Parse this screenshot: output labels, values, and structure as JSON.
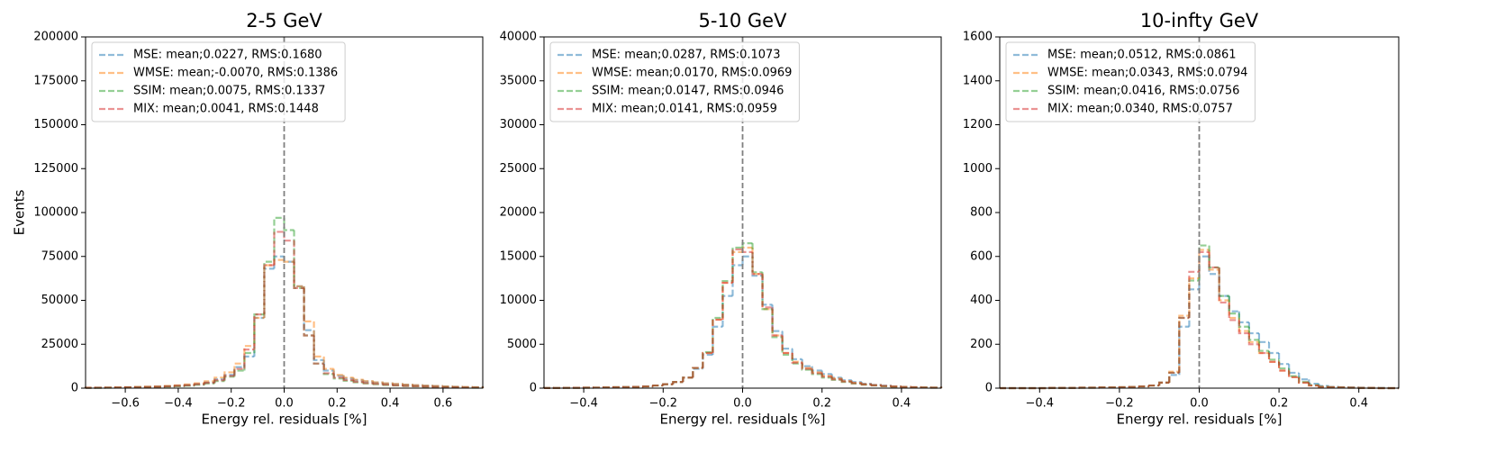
{
  "chart_data": [
    {
      "type": "histogram",
      "title": "2-5 GeV",
      "xlabel": "Energy rel. residuals [%]",
      "ylabel": "Events",
      "legend": "upper left",
      "vline": 0,
      "xlim": [
        -0.75,
        0.75
      ],
      "ylim": [
        0,
        200000
      ],
      "xticks": [
        {
          "value": -0.6,
          "label": "−0.6"
        },
        {
          "value": -0.4,
          "label": "−0.4"
        },
        {
          "value": -0.2,
          "label": "−0.2"
        },
        {
          "value": 0,
          "label": "0.0"
        },
        0.2,
        0.4,
        0.6
      ],
      "yticks": [
        0,
        25000,
        50000,
        75000,
        100000,
        125000,
        150000,
        175000,
        200000
      ],
      "bins": [
        -0.75,
        -0.7125,
        -0.675,
        -0.6375,
        -0.6,
        -0.5625,
        -0.525,
        -0.4875,
        -0.45,
        -0.4125,
        -0.375,
        -0.3375,
        -0.3,
        -0.2625,
        -0.225,
        -0.1875,
        -0.15,
        -0.1125,
        -0.075,
        -0.0375,
        0,
        0.0375,
        0.075,
        0.1125,
        0.15,
        0.1875,
        0.225,
        0.2625,
        0.3,
        0.3375,
        0.375,
        0.4125,
        0.45,
        0.4875,
        0.525,
        0.5625,
        0.6,
        0.6375,
        0.675,
        0.7125,
        0.75
      ],
      "series": [
        {
          "name": "MSE: mean;0.0227, RMS:0.1680",
          "color": "#1f77b4",
          "values": [
            200,
            250,
            300,
            400,
            500,
            600,
            700,
            900,
            1100,
            1400,
            1800,
            2400,
            3300,
            5000,
            7500,
            12000,
            18000,
            40000,
            68000,
            75000,
            72000,
            58000,
            33000,
            16000,
            10000,
            7000,
            5500,
            4500,
            3800,
            3200,
            2700,
            2300,
            2000,
            1700,
            1400,
            1200,
            1000,
            800,
            600,
            500
          ]
        },
        {
          "name": "WMSE: mean;-0.0070, RMS:0.1386",
          "color": "#ff7f0e",
          "values": [
            250,
            300,
            350,
            450,
            550,
            700,
            850,
            1000,
            1300,
            1600,
            2100,
            2800,
            3900,
            6000,
            9000,
            14000,
            24000,
            40000,
            70000,
            73000,
            72000,
            58000,
            38000,
            18000,
            11000,
            7500,
            6000,
            4800,
            4000,
            3300,
            2800,
            2400,
            2000,
            1700,
            1400,
            1200,
            1000,
            800,
            650,
            500
          ]
        },
        {
          "name": "SSIM: mean;0.0075, RMS:0.1337",
          "color": "#2ca02c",
          "values": [
            150,
            200,
            250,
            300,
            400,
            500,
            600,
            700,
            900,
            1100,
            1400,
            1900,
            2700,
            4000,
            6500,
            10000,
            20000,
            42000,
            72000,
            97000,
            90000,
            57000,
            30000,
            14000,
            8000,
            5500,
            4200,
            3300,
            2700,
            2200,
            1800,
            1500,
            1200,
            1000,
            800,
            650,
            500,
            400,
            300,
            250
          ]
        },
        {
          "name": "MIX: mean;0.0041, RMS:0.1448",
          "color": "#d62728",
          "values": [
            180,
            220,
            280,
            350,
            450,
            550,
            650,
            800,
            1000,
            1300,
            1600,
            2200,
            3000,
            4500,
            7000,
            11000,
            22000,
            42000,
            70000,
            89000,
            84000,
            57000,
            30000,
            14000,
            8500,
            6000,
            4600,
            3600,
            2900,
            2400,
            2000,
            1600,
            1300,
            1100,
            900,
            700,
            550,
            450,
            350,
            280
          ]
        }
      ]
    },
    {
      "type": "histogram",
      "title": "5-10 GeV",
      "xlabel": "Energy rel. residuals [%]",
      "legend": "upper left",
      "vline": 0,
      "xlim": [
        -0.5,
        0.5
      ],
      "ylim": [
        0,
        40000
      ],
      "xticks": [
        {
          "value": -0.4,
          "label": "−0.4"
        },
        {
          "value": -0.2,
          "label": "−0.2"
        },
        {
          "value": 0,
          "label": "0.0"
        },
        0.2,
        0.4
      ],
      "yticks": [
        0,
        5000,
        10000,
        15000,
        20000,
        25000,
        30000,
        35000,
        40000
      ],
      "bins": [
        -0.5,
        -0.475,
        -0.45,
        -0.425,
        -0.4,
        -0.375,
        -0.35,
        -0.325,
        -0.3,
        -0.275,
        -0.25,
        -0.225,
        -0.2,
        -0.175,
        -0.15,
        -0.125,
        -0.1,
        -0.075,
        -0.05,
        -0.025,
        0,
        0.025,
        0.05,
        0.075,
        0.1,
        0.125,
        0.15,
        0.175,
        0.2,
        0.225,
        0.25,
        0.275,
        0.3,
        0.325,
        0.35,
        0.375,
        0.4,
        0.425,
        0.45,
        0.475,
        0.5
      ],
      "series": [
        {
          "name": "MSE: mean;0.0287, RMS:0.1073",
          "color": "#1f77b4",
          "values": [
            10,
            20,
            30,
            40,
            50,
            60,
            80,
            100,
            120,
            150,
            200,
            300,
            450,
            700,
            1200,
            2200,
            3800,
            7000,
            10500,
            14000,
            15000,
            12800,
            9500,
            6500,
            4500,
            3300,
            2500,
            2000,
            1600,
            1200,
            900,
            700,
            500,
            380,
            280,
            200,
            150,
            110,
            80,
            60
          ]
        },
        {
          "name": "WMSE: mean;0.0170, RMS:0.0969",
          "color": "#ff7f0e",
          "values": [
            10,
            20,
            30,
            40,
            50,
            60,
            80,
            100,
            120,
            150,
            200,
            300,
            450,
            700,
            1200,
            2300,
            4000,
            7800,
            12000,
            15500,
            16000,
            13000,
            9000,
            6000,
            4000,
            3000,
            2300,
            1800,
            1400,
            1100,
            800,
            600,
            450,
            350,
            250,
            200,
            150,
            100,
            80,
            60
          ]
        },
        {
          "name": "SSIM: mean;0.0147, RMS:0.0946",
          "color": "#2ca02c",
          "values": [
            10,
            20,
            30,
            40,
            50,
            60,
            80,
            100,
            120,
            150,
            200,
            300,
            450,
            700,
            1200,
            2300,
            4100,
            8000,
            12200,
            16000,
            16500,
            13200,
            9000,
            5800,
            3800,
            2800,
            2100,
            1600,
            1200,
            950,
            700,
            520,
            400,
            300,
            220,
            160,
            120,
            90,
            70,
            50
          ]
        },
        {
          "name": "MIX: mean;0.0141, RMS:0.0959",
          "color": "#d62728",
          "values": [
            10,
            20,
            30,
            40,
            50,
            60,
            80,
            100,
            120,
            150,
            200,
            300,
            450,
            700,
            1200,
            2300,
            4000,
            7800,
            12000,
            15800,
            15500,
            13000,
            9200,
            6000,
            4000,
            2900,
            2200,
            1700,
            1300,
            1000,
            750,
            560,
            420,
            320,
            240,
            180,
            130,
            100,
            70,
            50
          ]
        }
      ]
    },
    {
      "type": "histogram",
      "title": "10-infty GeV",
      "xlabel": "Energy rel. residuals [%]",
      "legend": "upper left",
      "vline": 0,
      "xlim": [
        -0.5,
        0.5
      ],
      "ylim": [
        0,
        1600
      ],
      "xticks": [
        {
          "value": -0.4,
          "label": "−0.4"
        },
        {
          "value": -0.2,
          "label": "−0.2"
        },
        {
          "value": 0,
          "label": "0.0"
        },
        0.2,
        0.4
      ],
      "yticks": [
        0,
        200,
        400,
        600,
        800,
        1000,
        1200,
        1400,
        1600
      ],
      "bins": [
        -0.5,
        -0.475,
        -0.45,
        -0.425,
        -0.4,
        -0.375,
        -0.35,
        -0.325,
        -0.3,
        -0.275,
        -0.25,
        -0.225,
        -0.2,
        -0.175,
        -0.15,
        -0.125,
        -0.1,
        -0.075,
        -0.05,
        -0.025,
        0,
        0.025,
        0.05,
        0.075,
        0.1,
        0.125,
        0.15,
        0.175,
        0.2,
        0.225,
        0.25,
        0.275,
        0.3,
        0.325,
        0.35,
        0.375,
        0.4,
        0.425,
        0.45,
        0.475,
        0.5
      ],
      "series": [
        {
          "name": "MSE: mean;0.0512, RMS:0.0861",
          "color": "#1f77b4",
          "values": [
            0,
            0,
            0,
            0,
            0,
            1,
            1,
            1,
            2,
            2,
            3,
            3,
            4,
            5,
            8,
            12,
            25,
            60,
            280,
            450,
            600,
            520,
            420,
            350,
            300,
            250,
            210,
            160,
            110,
            70,
            40,
            20,
            10,
            6,
            4,
            3,
            2,
            1,
            1,
            0
          ]
        },
        {
          "name": "WMSE: mean;0.0343, RMS:0.0794",
          "color": "#ff7f0e",
          "values": [
            0,
            0,
            0,
            0,
            0,
            1,
            1,
            1,
            2,
            2,
            3,
            3,
            4,
            5,
            8,
            12,
            25,
            75,
            330,
            500,
            630,
            540,
            400,
            320,
            260,
            210,
            160,
            120,
            80,
            50,
            25,
            12,
            6,
            4,
            3,
            2,
            1,
            1,
            0,
            0
          ]
        },
        {
          "name": "SSIM: mean;0.0416, RMS:0.0756",
          "color": "#2ca02c",
          "values": [
            0,
            0,
            0,
            0,
            0,
            1,
            1,
            1,
            2,
            2,
            3,
            3,
            4,
            5,
            8,
            12,
            25,
            70,
            320,
            490,
            650,
            550,
            420,
            340,
            280,
            220,
            170,
            130,
            90,
            55,
            28,
            14,
            7,
            4,
            3,
            2,
            1,
            1,
            0,
            0
          ]
        },
        {
          "name": "MIX: mean;0.0340, RMS:0.0757",
          "color": "#d62728",
          "values": [
            0,
            0,
            0,
            0,
            0,
            1,
            1,
            1,
            2,
            2,
            3,
            3,
            4,
            5,
            8,
            12,
            25,
            70,
            320,
            530,
            620,
            550,
            390,
            310,
            250,
            200,
            160,
            120,
            80,
            50,
            25,
            12,
            6,
            4,
            3,
            2,
            1,
            1,
            0,
            0
          ]
        }
      ]
    }
  ]
}
